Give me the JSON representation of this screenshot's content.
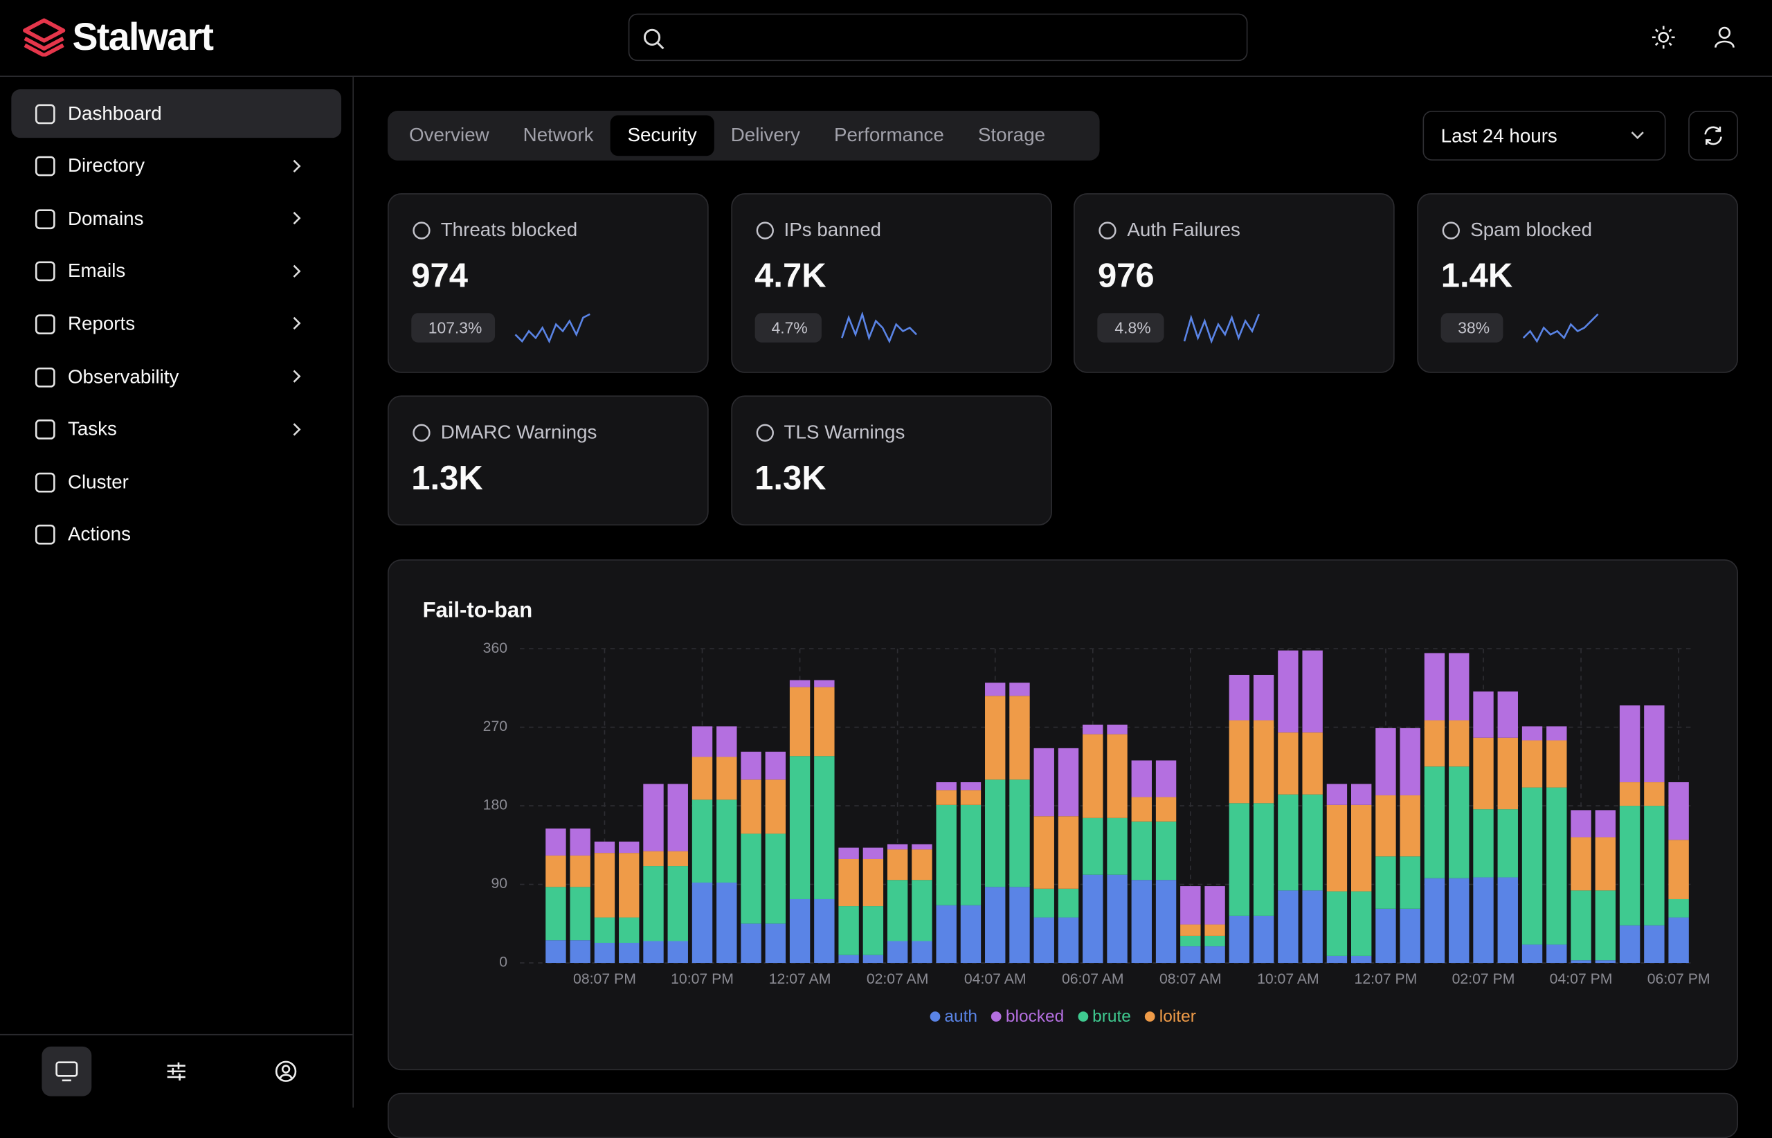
{
  "header": {
    "brand": "Stalwart"
  },
  "sidebar": {
    "items": [
      "Dashboard",
      "Directory",
      "Domains",
      "Emails",
      "Reports",
      "Observability",
      "Tasks",
      "Cluster",
      "Actions"
    ]
  },
  "tabs": [
    "Overview",
    "Network",
    "Security",
    "Delivery",
    "Performance",
    "Storage"
  ],
  "range": "Last 24 hours",
  "stats": [
    {
      "label": "Threats blocked",
      "value": "974",
      "change": "107.3%",
      "sparkline": [
        4,
        2,
        5,
        3,
        6,
        2,
        7,
        5,
        8,
        4,
        9,
        10
      ]
    },
    {
      "label": "IPs banned",
      "value": "4.7K",
      "change": "4.7%",
      "sparkline": [
        3,
        9,
        4,
        10,
        3,
        8,
        6,
        2,
        7,
        5,
        6,
        4
      ]
    },
    {
      "label": "Auth Failures",
      "value": "976",
      "change": "4.8%",
      "sparkline": [
        2,
        9,
        3,
        8,
        2,
        7,
        4,
        9,
        3,
        8,
        5,
        10
      ]
    },
    {
      "label": "Spam blocked",
      "value": "1.4K",
      "change": "38%",
      "sparkline": [
        3,
        5,
        2,
        6,
        4,
        5,
        3,
        7,
        5,
        6,
        8,
        10
      ]
    },
    {
      "label": "DMARC Warnings",
      "value": "1.3K"
    },
    {
      "label": "TLS Warnings",
      "value": "1.3K"
    }
  ],
  "chart_data": {
    "type": "bar",
    "stacked": true,
    "title": "Fail-to-ban",
    "categories": [
      null,
      null,
      "08:07 PM",
      null,
      null,
      null,
      "10:07 PM",
      null,
      null,
      null,
      "12:07 AM",
      null,
      null,
      null,
      "02:07 AM",
      null,
      null,
      null,
      "04:07 AM",
      null,
      null,
      null,
      "06:07 AM",
      null,
      null,
      null,
      "08:07 AM",
      null,
      null,
      null,
      "10:07 AM",
      null,
      null,
      null,
      "12:07 PM",
      null,
      null,
      null,
      "02:07 PM",
      null,
      null,
      null,
      "04:07 PM",
      null,
      null,
      null,
      "06:07 PM"
    ],
    "series": [
      {
        "name": "auth",
        "color": "#5a84e6",
        "values": [
          26,
          26,
          23,
          23,
          25,
          25,
          92,
          92,
          45,
          45,
          73,
          73,
          9,
          9,
          25,
          25,
          66,
          66,
          87,
          87,
          52,
          52,
          101,
          101,
          95,
          95,
          19,
          19,
          54,
          54,
          83,
          83,
          8,
          8,
          62,
          62,
          97,
          97,
          98,
          98,
          21,
          21,
          3,
          3,
          43,
          43,
          52
        ]
      },
      {
        "name": "blocked",
        "color": "#b46fe0",
        "values": [
          31,
          31,
          13,
          13,
          77,
          77,
          35,
          35,
          32,
          32,
          8,
          8,
          13,
          13,
          6,
          6,
          9,
          9,
          15,
          15,
          78,
          78,
          11,
          11,
          42,
          42,
          44,
          44,
          52,
          52,
          94,
          94,
          24,
          24,
          77,
          77,
          77,
          77,
          53,
          53,
          16,
          16,
          31,
          31,
          88,
          88,
          66
        ]
      },
      {
        "name": "brute",
        "color": "#3fca90",
        "values": [
          61,
          61,
          29,
          29,
          86,
          86,
          95,
          95,
          103,
          103,
          164,
          164,
          56,
          56,
          70,
          70,
          115,
          115,
          123,
          123,
          33,
          33,
          65,
          65,
          67,
          67,
          12,
          12,
          129,
          129,
          110,
          110,
          74,
          74,
          60,
          60,
          128,
          128,
          78,
          78,
          180,
          180,
          80,
          80,
          137,
          137,
          21
        ]
      },
      {
        "name": "loiter",
        "color": "#ef9b48",
        "values": [
          36,
          36,
          74,
          74,
          17,
          17,
          49,
          49,
          62,
          62,
          79,
          79,
          54,
          54,
          35,
          35,
          17,
          17,
          96,
          96,
          83,
          83,
          96,
          96,
          28,
          28,
          13,
          13,
          95,
          95,
          71,
          71,
          99,
          99,
          70,
          70,
          53,
          53,
          82,
          82,
          54,
          54,
          61,
          61,
          27,
          27,
          68
        ]
      }
    ],
    "ylim": [
      0,
      360
    ],
    "yticks": [
      0,
      90,
      180,
      270,
      360
    ],
    "grid": true
  }
}
